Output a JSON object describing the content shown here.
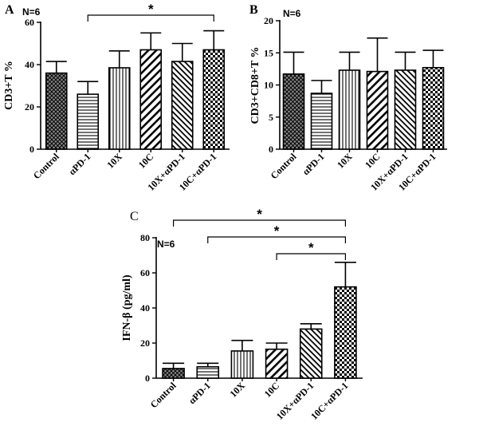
{
  "chart_data": [
    {
      "id": "A",
      "type": "bar",
      "panel_label": "A",
      "n_label": "N=6",
      "ylabel": "CD3+T %",
      "categories": [
        "Control",
        "αPD-1",
        "10X",
        "10C",
        "10X+αPD-1",
        "10C+αPD-1"
      ],
      "values": [
        36,
        26,
        38.5,
        47,
        41.5,
        47
      ],
      "errors": [
        5.5,
        6,
        8,
        8,
        8.5,
        9
      ],
      "patterns": [
        "crosshatch",
        "hlines",
        "vlines",
        "diag-back",
        "diag-fwd",
        "checker"
      ],
      "ylim": [
        0,
        60
      ],
      "yticks": [
        0,
        20,
        40,
        60
      ],
      "significance": [
        {
          "from": 1,
          "to": 5,
          "label": "*"
        }
      ]
    },
    {
      "id": "B",
      "type": "bar",
      "panel_label": "B",
      "n_label": "N=6",
      "ylabel": "CD3+CD8+T %",
      "categories": [
        "Control",
        "αPD-1",
        "10X",
        "10C",
        "10X+αPD-1",
        "10C+αPD-1"
      ],
      "values": [
        11.7,
        8.7,
        12.3,
        12.1,
        12.3,
        12.7
      ],
      "errors": [
        3.4,
        2,
        2.8,
        5.2,
        2.8,
        2.7
      ],
      "patterns": [
        "crosshatch",
        "hlines",
        "vlines",
        "diag-back",
        "diag-fwd",
        "checker"
      ],
      "ylim": [
        0,
        20
      ],
      "yticks": [
        0,
        5,
        10,
        15,
        20
      ],
      "significance": []
    },
    {
      "id": "C",
      "type": "bar",
      "panel_label": "C",
      "n_label": "N=6",
      "ylabel": "IFN-β (pg/ml)",
      "categories": [
        "Control",
        "αPD-1",
        "10X",
        "10C",
        "10X+αPD-1",
        "10C+αPD-1"
      ],
      "values": [
        5.5,
        6.5,
        15.5,
        16.5,
        28,
        52
      ],
      "errors": [
        3,
        2,
        6,
        3.5,
        3,
        14
      ],
      "patterns": [
        "crosshatch",
        "hlines",
        "vlines",
        "diag-back",
        "diag-fwd",
        "checker"
      ],
      "ylim": [
        0,
        80
      ],
      "yticks": [
        0,
        20,
        40,
        60,
        80
      ],
      "significance": [
        {
          "from": 0,
          "to": 5,
          "label": "*"
        },
        {
          "from": 1,
          "to": 5,
          "label": "*"
        },
        {
          "from": 3,
          "to": 5,
          "label": "*"
        }
      ]
    }
  ]
}
